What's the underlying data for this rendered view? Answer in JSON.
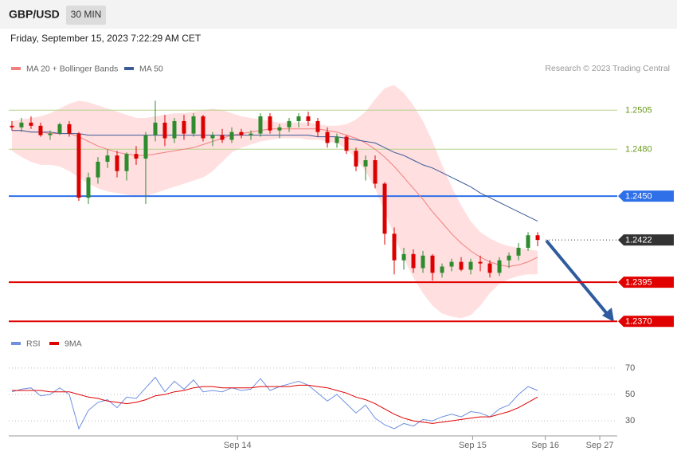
{
  "chart_data": [
    {
      "type": "candlestick",
      "title": "GBP/USD",
      "timeframe": "30 MIN",
      "subtitle": "Friday, September 15, 2023 7:22:29 AM CET",
      "credit": "Research © 2023 Trading Central",
      "ylim": [
        1.2364,
        1.2527
      ],
      "up_color": "#2e8b2e",
      "down_color": "#dd0000",
      "open": [
        1.2495,
        1.2494,
        1.2497,
        1.2495,
        1.2489,
        1.249,
        1.2496,
        1.249,
        1.2449,
        1.2462,
        1.2472,
        1.2476,
        1.2466,
        1.2477,
        1.2474,
        1.2489,
        1.2497,
        1.2487,
        1.2498,
        1.249,
        1.2501,
        1.2487,
        1.2489,
        1.2486,
        1.2491,
        1.2489,
        1.249,
        1.2501,
        1.2492,
        1.2494,
        1.2498,
        1.2501,
        1.2498,
        1.2491,
        1.2484,
        1.2488,
        1.2479,
        1.2469,
        1.2473,
        1.2458,
        1.2426,
        1.2409,
        1.2413,
        1.2404,
        1.2412,
        1.2401,
        1.2405,
        1.2408,
        1.2403,
        1.2408,
        1.2407,
        1.2401,
        1.2409,
        1.2412,
        1.2417,
        1.2425
      ],
      "high": [
        1.2498,
        1.25,
        1.2501,
        1.2497,
        1.2492,
        1.2497,
        1.2498,
        1.2491,
        1.2465,
        1.2475,
        1.248,
        1.2479,
        1.2478,
        1.2482,
        1.2491,
        1.2511,
        1.2502,
        1.25,
        1.2502,
        1.2503,
        1.2502,
        1.2491,
        1.2493,
        1.2494,
        1.2493,
        1.2492,
        1.2503,
        1.2503,
        1.2496,
        1.25,
        1.2503,
        1.2504,
        1.25,
        1.2494,
        1.249,
        1.2489,
        1.2481,
        1.2476,
        1.2476,
        1.2459,
        1.243,
        1.2417,
        1.2416,
        1.2415,
        1.2413,
        1.2407,
        1.241,
        1.2411,
        1.241,
        1.2412,
        1.2409,
        1.2411,
        1.2414,
        1.242,
        1.2427,
        1.2427
      ],
      "low": [
        1.2492,
        1.2491,
        1.2493,
        1.2488,
        1.2486,
        1.2489,
        1.2488,
        1.2447,
        1.2445,
        1.2458,
        1.2468,
        1.2462,
        1.246,
        1.247,
        1.2445,
        1.2485,
        1.2482,
        1.2484,
        1.2486,
        1.2488,
        1.2485,
        1.2482,
        1.2484,
        1.2484,
        1.2487,
        1.2486,
        1.2488,
        1.249,
        1.2487,
        1.2491,
        1.2494,
        1.2495,
        1.2488,
        1.2481,
        1.2481,
        1.2477,
        1.2466,
        1.246,
        1.2455,
        1.2419,
        1.24,
        1.2403,
        1.2401,
        1.2401,
        1.2396,
        1.2398,
        1.2402,
        1.2402,
        1.24,
        1.2402,
        1.2398,
        1.2399,
        1.2404,
        1.2409,
        1.2415,
        1.2418
      ],
      "close": [
        1.2494,
        1.2497,
        1.2495,
        1.2489,
        1.249,
        1.2496,
        1.249,
        1.2449,
        1.2462,
        1.2472,
        1.2476,
        1.2466,
        1.2477,
        1.2474,
        1.2489,
        1.2497,
        1.2487,
        1.2498,
        1.249,
        1.2501,
        1.2487,
        1.2489,
        1.2486,
        1.2491,
        1.2489,
        1.249,
        1.2501,
        1.2492,
        1.2494,
        1.2498,
        1.2501,
        1.2498,
        1.2491,
        1.2484,
        1.2488,
        1.2479,
        1.2469,
        1.2473,
        1.2458,
        1.2426,
        1.2409,
        1.2413,
        1.2404,
        1.2412,
        1.2401,
        1.2405,
        1.2408,
        1.2403,
        1.2408,
        1.2407,
        1.2401,
        1.2409,
        1.2412,
        1.2417,
        1.2425,
        1.2422
      ],
      "series": [
        {
          "name": "MA 20 + Bollinger Bands",
          "color": "#f08080",
          "band_color": "#ffd9d9",
          "values": [
            1.2492,
            1.2492,
            1.2491,
            1.2491,
            1.249,
            1.249,
            1.249,
            1.2488,
            1.2485,
            1.2482,
            1.248,
            1.2478,
            1.2477,
            1.2476,
            1.2476,
            1.2477,
            1.2478,
            1.2479,
            1.248,
            1.2481,
            1.2483,
            1.2485,
            1.2487,
            1.2489,
            1.249,
            1.2491,
            1.2492,
            1.2493,
            1.2493,
            1.2493,
            1.2493,
            1.2493,
            1.2493,
            1.2492,
            1.2491,
            1.2489,
            1.2487,
            1.2484,
            1.248,
            1.2475,
            1.2469,
            1.2462,
            1.2455,
            1.2448,
            1.244,
            1.2433,
            1.2426,
            1.242,
            1.2415,
            1.2411,
            1.2408,
            1.2406,
            1.2405,
            1.2406,
            1.2408,
            1.2411
          ],
          "upper": [
            1.2498,
            1.2499,
            1.25,
            1.2501,
            1.2503,
            1.2506,
            1.2509,
            1.2511,
            1.251,
            1.2508,
            1.2506,
            1.2504,
            1.2502,
            1.25,
            1.25,
            1.2501,
            1.2502,
            1.2503,
            1.2503,
            1.2504,
            1.2505,
            1.2506,
            1.2505,
            1.2503,
            1.2501,
            1.25,
            1.2499,
            1.2498,
            1.2497,
            1.2497,
            1.2497,
            1.2497,
            1.2496,
            1.2495,
            1.2495,
            1.2496,
            1.2499,
            1.2504,
            1.2512,
            1.2519,
            1.2521,
            1.2516,
            1.2508,
            1.2498,
            1.2485,
            1.247,
            1.2456,
            1.2444,
            1.2434,
            1.2427,
            1.2423,
            1.242,
            1.2418,
            1.2417,
            1.2416,
            1.2415
          ],
          "lower": [
            1.2479,
            1.2475,
            1.2472,
            1.247,
            1.247,
            1.2469,
            1.2466,
            1.2462,
            1.2458,
            1.2455,
            1.2453,
            1.2452,
            1.2451,
            1.245,
            1.245,
            1.2452,
            1.2454,
            1.2456,
            1.2458,
            1.246,
            1.2462,
            1.2466,
            1.2472,
            1.2478,
            1.2481,
            1.2483,
            1.2485,
            1.2486,
            1.2487,
            1.2487,
            1.2487,
            1.2486,
            1.2486,
            1.2485,
            1.2484,
            1.248,
            1.2474,
            1.2466,
            1.2455,
            1.244,
            1.2425,
            1.241,
            1.2398,
            1.2388,
            1.238,
            1.2375,
            1.2373,
            1.2372,
            1.2374,
            1.238,
            1.2388,
            1.2394,
            1.2397,
            1.2399,
            1.24,
            1.24
          ]
        },
        {
          "name": "MA 50",
          "color": "#3b5b9a",
          "values": [
            1.2492,
            1.2492,
            1.2491,
            1.2491,
            1.2491,
            1.249,
            1.249,
            1.249,
            1.2489,
            1.2489,
            1.2489,
            1.2489,
            1.2489,
            1.2489,
            1.2489,
            1.2489,
            1.2489,
            1.2489,
            1.2489,
            1.2489,
            1.2489,
            1.2489,
            1.2489,
            1.2489,
            1.2489,
            1.2489,
            1.2489,
            1.2489,
            1.2489,
            1.2489,
            1.2489,
            1.2489,
            1.2488,
            1.2488,
            1.2488,
            1.2487,
            1.2486,
            1.2485,
            1.2484,
            1.2481,
            1.2478,
            1.2476,
            1.2473,
            1.247,
            1.2468,
            1.2465,
            1.2462,
            1.2459,
            1.2456,
            1.2452,
            1.2449,
            1.2446,
            1.2443,
            1.244,
            1.2437,
            1.2434
          ]
        }
      ],
      "levels": [
        {
          "value": 1.2505,
          "label": "1.2505",
          "color": "#b5d48a",
          "text_color": "#6a9a1a",
          "box": false,
          "line": "solid"
        },
        {
          "value": 1.248,
          "label": "1.2480",
          "color": "#b5d48a",
          "text_color": "#6a9a1a",
          "box": false,
          "line": "solid"
        },
        {
          "value": 1.245,
          "label": "1.2450",
          "color": "#2f6fe8",
          "text_color": "#ffffff",
          "box": true,
          "line": "solid"
        },
        {
          "value": 1.2422,
          "label": "1.2422",
          "color": "#333333",
          "text_color": "#ffffff",
          "box": true,
          "line": "dotted"
        },
        {
          "value": 1.2395,
          "label": "1.2395",
          "color": "#e00000",
          "text_color": "#ffffff",
          "box": true,
          "line": "solid"
        },
        {
          "value": 1.237,
          "label": "1.2370",
          "color": "#e00000",
          "text_color": "#ffffff",
          "box": true,
          "line": "solid"
        }
      ]
    },
    {
      "type": "line",
      "ylim": [
        21,
        79
      ],
      "yticks": [
        70,
        50,
        30
      ],
      "grid": true,
      "xlim": [
        -0.33,
        63.33
      ],
      "xticks": [
        {
          "value": 23.6,
          "label": "Sep 14"
        },
        {
          "value": 48.2,
          "label": "Sep 15"
        },
        {
          "value": 55.8,
          "label": "Sep 16"
        },
        {
          "value": 61.5,
          "label": "Sep 27"
        }
      ],
      "series": [
        {
          "name": "RSI",
          "color": "#6f8fe0",
          "values": [
            52,
            54,
            55,
            49,
            50,
            55,
            50,
            24,
            38,
            44,
            46,
            40,
            48,
            47,
            55,
            63,
            52,
            60,
            54,
            61,
            52,
            53,
            52,
            55,
            53,
            54,
            62,
            53,
            56,
            58,
            60,
            57,
            51,
            45,
            50,
            43,
            36,
            42,
            32,
            27,
            24,
            28,
            26,
            31,
            30,
            33,
            35,
            33,
            37,
            36,
            33,
            39,
            42,
            50,
            56,
            53
          ]
        },
        {
          "name": "9MA",
          "color": "#e00000",
          "values": [
            53,
            53,
            53,
            53,
            52,
            52,
            52,
            50,
            48,
            47,
            45,
            44,
            43,
            44,
            46,
            49,
            50,
            52,
            53,
            55,
            56,
            56,
            55,
            55,
            55,
            55,
            56,
            56,
            56,
            56,
            57,
            57,
            56,
            55,
            53,
            51,
            48,
            46,
            43,
            39,
            35,
            32,
            30,
            29,
            28,
            29,
            30,
            31,
            32,
            33,
            33,
            35,
            37,
            40,
            44,
            48
          ]
        }
      ]
    }
  ]
}
